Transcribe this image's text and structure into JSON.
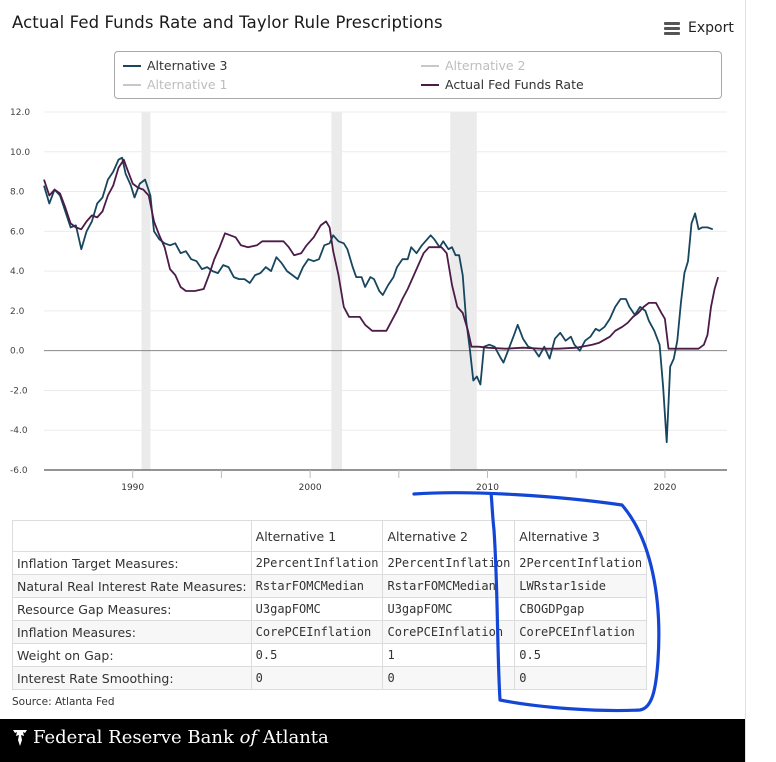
{
  "chart_data": {
    "type": "line",
    "title": "Actual Fed Funds Rate and Taylor Rule Prescriptions",
    "xlabel": "",
    "ylabel": "",
    "xlim": [
      1985,
      2023.5
    ],
    "ylim": [
      -6,
      12
    ],
    "y_ticks": [
      "12.0",
      "10.0",
      "8.0",
      "6.0",
      "4.0",
      "2.0",
      "0.0",
      "-2.0",
      "-4.0",
      "-6.0"
    ],
    "x_ticks": [
      "1990",
      "2000",
      "2010",
      "2020"
    ],
    "recessions": [
      [
        1990.5,
        1991.0
      ],
      [
        2001.2,
        2001.8
      ],
      [
        2007.9,
        2009.4
      ]
    ],
    "legend": [
      {
        "name": "Alternative 3",
        "state": "visible",
        "color": "#17465e"
      },
      {
        "name": "Alternative 2",
        "state": "hidden",
        "color": "#c8c8c8"
      },
      {
        "name": "Alternative 1",
        "state": "hidden",
        "color": "#c8c8c8"
      },
      {
        "name": "Actual Fed Funds Rate",
        "state": "visible",
        "color": "#4c1b48"
      }
    ],
    "series": [
      {
        "name": "Alternative 3",
        "color": "#17465e",
        "points": [
          [
            1985.0,
            8.3
          ],
          [
            1985.3,
            7.4
          ],
          [
            1985.6,
            8.1
          ],
          [
            1985.9,
            7.8
          ],
          [
            1986.2,
            7.0
          ],
          [
            1986.5,
            6.2
          ],
          [
            1986.8,
            6.3
          ],
          [
            1987.1,
            5.1
          ],
          [
            1987.4,
            6.0
          ],
          [
            1987.7,
            6.5
          ],
          [
            1988.0,
            7.4
          ],
          [
            1988.3,
            7.7
          ],
          [
            1988.6,
            8.6
          ],
          [
            1988.9,
            9.0
          ],
          [
            1989.2,
            9.6
          ],
          [
            1989.4,
            9.7
          ],
          [
            1989.6,
            8.9
          ],
          [
            1989.9,
            8.3
          ],
          [
            1990.1,
            7.7
          ],
          [
            1990.4,
            8.4
          ],
          [
            1990.7,
            8.6
          ],
          [
            1991.0,
            7.8
          ],
          [
            1991.2,
            6.0
          ],
          [
            1991.5,
            5.6
          ],
          [
            1991.8,
            5.4
          ],
          [
            1992.1,
            5.3
          ],
          [
            1992.4,
            5.4
          ],
          [
            1992.7,
            4.9
          ],
          [
            1993.0,
            5.0
          ],
          [
            1993.3,
            4.6
          ],
          [
            1993.6,
            4.5
          ],
          [
            1993.9,
            4.1
          ],
          [
            1994.2,
            4.2
          ],
          [
            1994.5,
            4.0
          ],
          [
            1994.8,
            3.9
          ],
          [
            1995.1,
            4.3
          ],
          [
            1995.4,
            4.2
          ],
          [
            1995.7,
            3.7
          ],
          [
            1996.0,
            3.6
          ],
          [
            1996.3,
            3.6
          ],
          [
            1996.6,
            3.4
          ],
          [
            1996.9,
            3.8
          ],
          [
            1997.2,
            3.9
          ],
          [
            1997.5,
            4.2
          ],
          [
            1997.8,
            4.0
          ],
          [
            1998.1,
            4.7
          ],
          [
            1998.4,
            4.4
          ],
          [
            1998.7,
            4.0
          ],
          [
            1999.0,
            3.8
          ],
          [
            1999.3,
            3.6
          ],
          [
            1999.6,
            4.2
          ],
          [
            1999.9,
            4.6
          ],
          [
            2000.2,
            4.5
          ],
          [
            2000.5,
            4.6
          ],
          [
            2000.8,
            5.3
          ],
          [
            2001.1,
            5.4
          ],
          [
            2001.3,
            5.8
          ],
          [
            2001.6,
            5.5
          ],
          [
            2001.9,
            5.4
          ],
          [
            2002.1,
            5.1
          ],
          [
            2002.4,
            4.2
          ],
          [
            2002.6,
            3.7
          ],
          [
            2002.9,
            3.7
          ],
          [
            2003.1,
            3.2
          ],
          [
            2003.4,
            3.7
          ],
          [
            2003.6,
            3.6
          ],
          [
            2003.9,
            3.0
          ],
          [
            2004.1,
            2.8
          ],
          [
            2004.4,
            3.3
          ],
          [
            2004.7,
            3.7
          ],
          [
            2004.9,
            4.2
          ],
          [
            2005.2,
            4.6
          ],
          [
            2005.5,
            4.6
          ],
          [
            2005.7,
            5.2
          ],
          [
            2006.0,
            4.9
          ],
          [
            2006.3,
            5.3
          ],
          [
            2006.5,
            5.5
          ],
          [
            2006.8,
            5.8
          ],
          [
            2007.0,
            5.6
          ],
          [
            2007.3,
            5.2
          ],
          [
            2007.5,
            5.5
          ],
          [
            2007.8,
            5.1
          ],
          [
            2008.0,
            5.2
          ],
          [
            2008.2,
            4.8
          ],
          [
            2008.4,
            4.8
          ],
          [
            2008.6,
            3.8
          ],
          [
            2008.8,
            1.5
          ],
          [
            2009.0,
            0.1
          ],
          [
            2009.2,
            -1.5
          ],
          [
            2009.4,
            -1.3
          ],
          [
            2009.6,
            -1.7
          ],
          [
            2009.8,
            0.2
          ],
          [
            2010.1,
            0.3
          ],
          [
            2010.4,
            0.2
          ],
          [
            2010.7,
            -0.3
          ],
          [
            2010.9,
            -0.6
          ],
          [
            2011.2,
            0.1
          ],
          [
            2011.5,
            0.8
          ],
          [
            2011.7,
            1.3
          ],
          [
            2012.0,
            0.6
          ],
          [
            2012.3,
            0.2
          ],
          [
            2012.6,
            0.1
          ],
          [
            2012.9,
            -0.3
          ],
          [
            2013.2,
            0.2
          ],
          [
            2013.5,
            -0.4
          ],
          [
            2013.8,
            0.6
          ],
          [
            2014.1,
            0.9
          ],
          [
            2014.4,
            0.5
          ],
          [
            2014.7,
            0.7
          ],
          [
            2014.9,
            0.3
          ],
          [
            2015.2,
            0.0
          ],
          [
            2015.5,
            0.5
          ],
          [
            2015.8,
            0.7
          ],
          [
            2016.1,
            1.1
          ],
          [
            2016.3,
            1.0
          ],
          [
            2016.6,
            1.2
          ],
          [
            2016.9,
            1.6
          ],
          [
            2017.2,
            2.2
          ],
          [
            2017.5,
            2.6
          ],
          [
            2017.8,
            2.6
          ],
          [
            2018.0,
            2.2
          ],
          [
            2018.3,
            1.8
          ],
          [
            2018.6,
            2.2
          ],
          [
            2018.9,
            2.0
          ],
          [
            2019.1,
            1.5
          ],
          [
            2019.4,
            1.0
          ],
          [
            2019.7,
            0.3
          ],
          [
            2019.9,
            -1.8
          ],
          [
            2020.1,
            -4.6
          ],
          [
            2020.3,
            -0.8
          ],
          [
            2020.5,
            -0.4
          ],
          [
            2020.7,
            0.5
          ],
          [
            2020.9,
            2.4
          ],
          [
            2021.1,
            3.9
          ],
          [
            2021.3,
            4.5
          ],
          [
            2021.5,
            6.4
          ],
          [
            2021.7,
            6.9
          ],
          [
            2021.9,
            6.1
          ],
          [
            2022.1,
            6.2
          ],
          [
            2022.4,
            6.2
          ],
          [
            2022.7,
            6.1
          ]
        ]
      },
      {
        "name": "Actual Fed Funds Rate",
        "color": "#4c1b48",
        "points": [
          [
            1985.0,
            8.6
          ],
          [
            1985.3,
            7.8
          ],
          [
            1985.6,
            8.1
          ],
          [
            1985.9,
            7.9
          ],
          [
            1986.2,
            7.2
          ],
          [
            1986.5,
            6.4
          ],
          [
            1986.8,
            6.2
          ],
          [
            1987.1,
            6.1
          ],
          [
            1987.4,
            6.5
          ],
          [
            1987.7,
            6.8
          ],
          [
            1988.0,
            6.7
          ],
          [
            1988.3,
            7.0
          ],
          [
            1988.6,
            7.8
          ],
          [
            1988.9,
            8.3
          ],
          [
            1989.2,
            9.2
          ],
          [
            1989.5,
            9.6
          ],
          [
            1989.7,
            9.1
          ],
          [
            1990.0,
            8.4
          ],
          [
            1990.3,
            8.2
          ],
          [
            1990.6,
            8.1
          ],
          [
            1990.9,
            7.8
          ],
          [
            1991.2,
            6.5
          ],
          [
            1991.5,
            5.8
          ],
          [
            1991.8,
            5.2
          ],
          [
            1992.1,
            4.1
          ],
          [
            1992.4,
            3.8
          ],
          [
            1992.7,
            3.2
          ],
          [
            1993.0,
            3.0
          ],
          [
            1993.5,
            3.0
          ],
          [
            1994.0,
            3.1
          ],
          [
            1994.3,
            3.8
          ],
          [
            1994.6,
            4.6
          ],
          [
            1994.9,
            5.2
          ],
          [
            1995.2,
            5.9
          ],
          [
            1995.5,
            5.8
          ],
          [
            1995.8,
            5.7
          ],
          [
            1996.1,
            5.3
          ],
          [
            1996.5,
            5.2
          ],
          [
            1997.0,
            5.3
          ],
          [
            1997.3,
            5.5
          ],
          [
            1997.7,
            5.5
          ],
          [
            1998.2,
            5.5
          ],
          [
            1998.5,
            5.5
          ],
          [
            1998.8,
            5.2
          ],
          [
            1999.1,
            4.8
          ],
          [
            1999.5,
            4.9
          ],
          [
            1999.8,
            5.3
          ],
          [
            2000.2,
            5.7
          ],
          [
            2000.6,
            6.3
          ],
          [
            2000.9,
            6.5
          ],
          [
            2001.1,
            6.2
          ],
          [
            2001.3,
            5.0
          ],
          [
            2001.6,
            3.8
          ],
          [
            2001.9,
            2.2
          ],
          [
            2002.2,
            1.7
          ],
          [
            2002.5,
            1.7
          ],
          [
            2002.8,
            1.7
          ],
          [
            2003.1,
            1.3
          ],
          [
            2003.5,
            1.0
          ],
          [
            2003.9,
            1.0
          ],
          [
            2004.3,
            1.0
          ],
          [
            2004.6,
            1.5
          ],
          [
            2004.9,
            2.0
          ],
          [
            2005.2,
            2.6
          ],
          [
            2005.5,
            3.1
          ],
          [
            2005.8,
            3.7
          ],
          [
            2006.1,
            4.3
          ],
          [
            2006.4,
            4.9
          ],
          [
            2006.7,
            5.2
          ],
          [
            2007.0,
            5.2
          ],
          [
            2007.4,
            5.2
          ],
          [
            2007.7,
            4.9
          ],
          [
            2008.0,
            3.3
          ],
          [
            2008.3,
            2.2
          ],
          [
            2008.6,
            1.9
          ],
          [
            2008.9,
            1.0
          ],
          [
            2009.1,
            0.2
          ],
          [
            2009.5,
            0.2
          ],
          [
            2010.0,
            0.15
          ],
          [
            2011.0,
            0.1
          ],
          [
            2012.0,
            0.15
          ],
          [
            2013.0,
            0.1
          ],
          [
            2014.0,
            0.1
          ],
          [
            2015.0,
            0.15
          ],
          [
            2015.9,
            0.3
          ],
          [
            2016.3,
            0.4
          ],
          [
            2016.9,
            0.7
          ],
          [
            2017.2,
            1.0
          ],
          [
            2017.6,
            1.2
          ],
          [
            2017.9,
            1.4
          ],
          [
            2018.2,
            1.7
          ],
          [
            2018.5,
            1.9
          ],
          [
            2018.8,
            2.2
          ],
          [
            2019.1,
            2.4
          ],
          [
            2019.5,
            2.4
          ],
          [
            2019.8,
            1.9
          ],
          [
            2020.0,
            1.6
          ],
          [
            2020.2,
            0.1
          ],
          [
            2020.5,
            0.1
          ],
          [
            2021.0,
            0.1
          ],
          [
            2021.5,
            0.1
          ],
          [
            2021.9,
            0.1
          ],
          [
            2022.2,
            0.3
          ],
          [
            2022.4,
            0.8
          ],
          [
            2022.6,
            2.2
          ],
          [
            2022.8,
            3.1
          ],
          [
            2023.0,
            3.7
          ]
        ]
      }
    ]
  },
  "header": {
    "title": "Actual Fed Funds Rate and Taylor Rule Prescriptions",
    "export_label": "Export"
  },
  "table": {
    "columns": [
      "",
      "Alternative 1",
      "Alternative 2",
      "Alternative 3"
    ],
    "rows": [
      [
        "Inflation Target Measures:",
        "2PercentInflation",
        "2PercentInflation",
        "2PercentInflation"
      ],
      [
        "Natural Real Interest Rate Measures:",
        "RstarFOMCMedian",
        "RstarFOMCMedian",
        "LWRstar1side"
      ],
      [
        "Resource Gap Measures:",
        "U3gapFOMC",
        "U3gapFOMC",
        "CBOGDPgap"
      ],
      [
        "Inflation Measures:",
        "CorePCEInflation",
        "CorePCEInflation",
        "CorePCEInflation"
      ],
      [
        "Weight on Gap:",
        "0.5",
        "1",
        "0.5"
      ],
      [
        "Interest Rate Smoothing:",
        "0",
        "0",
        "0"
      ]
    ]
  },
  "source": "Source: Atlanta Fed",
  "footer": {
    "name_start": "Federal Reserve Bank ",
    "name_of": "of",
    "name_end": " Atlanta"
  },
  "annotation_color": "#1446d6"
}
